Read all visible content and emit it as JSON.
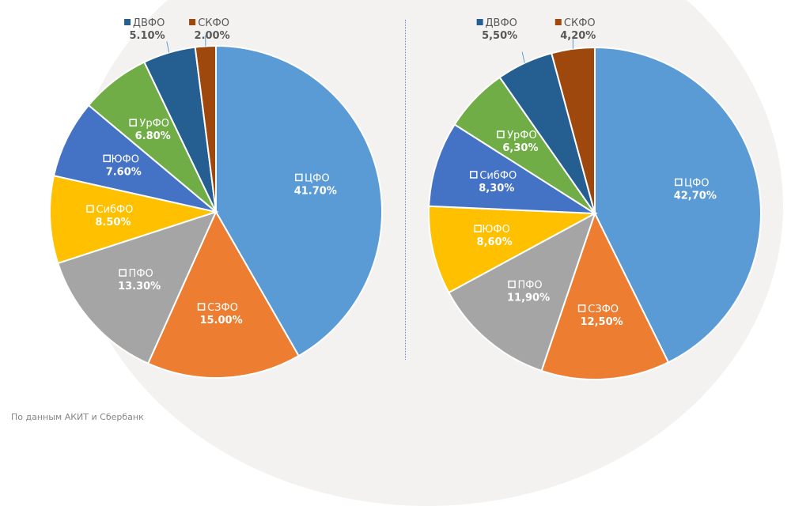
{
  "chart_data": [
    {
      "type": "pie",
      "title": "",
      "start": "top",
      "direction": "clockwise",
      "slices": [
        {
          "label": "ЦФО",
          "value": 41.7,
          "value_label": "41.70%",
          "color": "#5b9bd5"
        },
        {
          "label": "СЗФО",
          "value": 15.0,
          "value_label": "15.00%",
          "color": "#ed7d31"
        },
        {
          "label": "ПФО",
          "value": 13.3,
          "value_label": "13.30%",
          "color": "#a5a5a5"
        },
        {
          "label": "СибФО",
          "value": 8.5,
          "value_label": "8.50%",
          "color": "#ffc000"
        },
        {
          "label": "ЮФО",
          "value": 7.6,
          "value_label": "7.60%",
          "color": "#4472c4"
        },
        {
          "label": "УрФО",
          "value": 6.8,
          "value_label": "6.80%",
          "color": "#70ad47"
        },
        {
          "label": "ДВФО",
          "value": 5.1,
          "value_label": "5.10%",
          "color": "#255e91"
        },
        {
          "label": "СКФО",
          "value": 2.0,
          "value_label": "2.00%",
          "color": "#9e480e"
        }
      ]
    },
    {
      "type": "pie",
      "title": "",
      "start": "top",
      "direction": "clockwise",
      "slices": [
        {
          "label": "ЦФО",
          "value": 42.7,
          "value_label": "42,70%",
          "color": "#5b9bd5"
        },
        {
          "label": "СЗФО",
          "value": 12.5,
          "value_label": "12,50%",
          "color": "#ed7d31"
        },
        {
          "label": "ПФО",
          "value": 11.9,
          "value_label": "11,90%",
          "color": "#a5a5a5"
        },
        {
          "label": "ЮФО",
          "value": 8.6,
          "value_label": "8,60%",
          "color": "#ffc000"
        },
        {
          "label": "СибФО",
          "value": 8.3,
          "value_label": "8,30%",
          "color": "#4472c4"
        },
        {
          "label": "УрФО",
          "value": 6.3,
          "value_label": "6,30%",
          "color": "#70ad47"
        },
        {
          "label": "ДВФО",
          "value": 5.5,
          "value_label": "5,50%",
          "color": "#255e91"
        },
        {
          "label": "СКФО",
          "value": 4.2,
          "value_label": "4,20%",
          "color": "#9e480e"
        }
      ]
    }
  ],
  "source": "По данным АКИТ и Сбербанк"
}
